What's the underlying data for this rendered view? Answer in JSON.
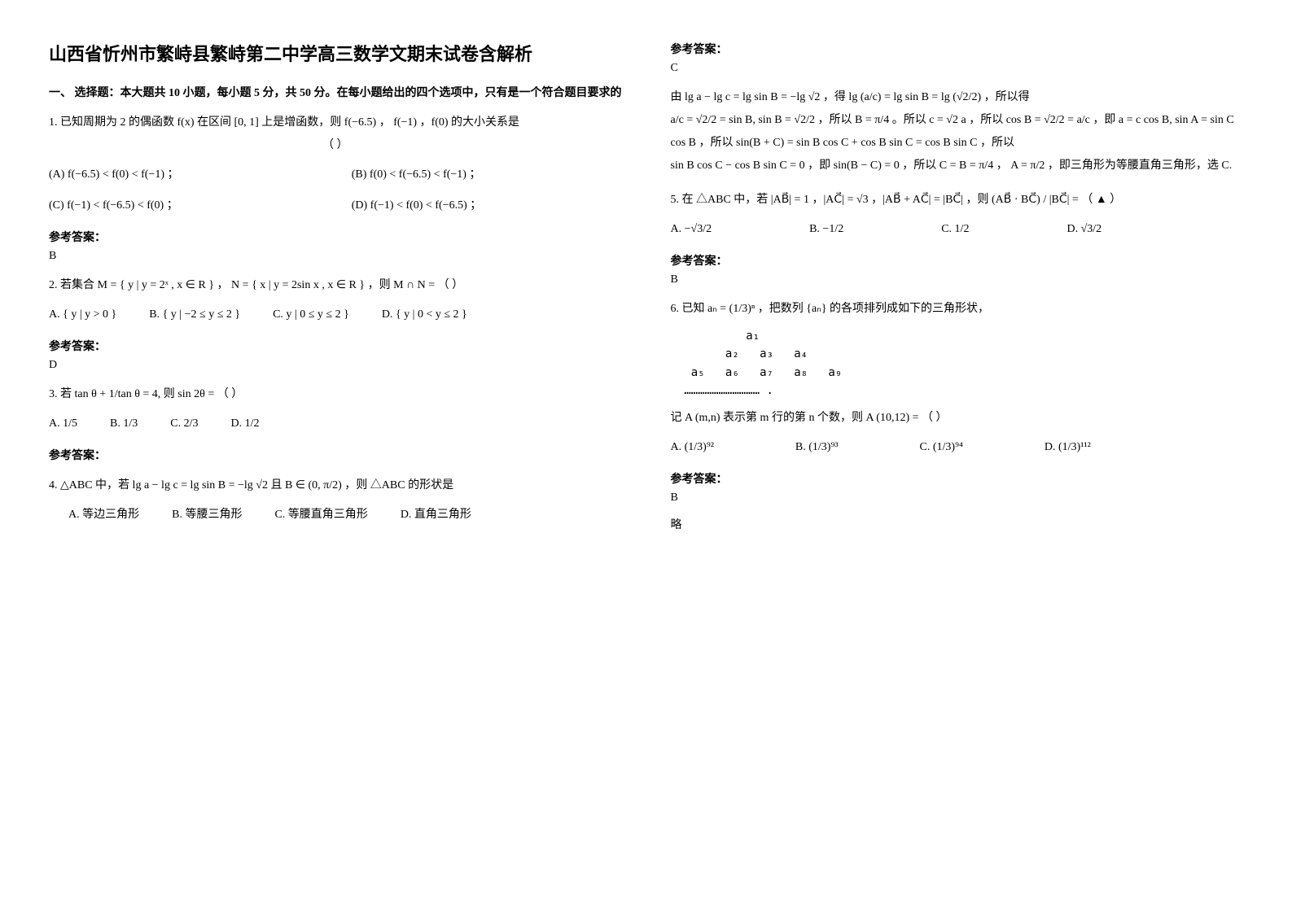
{
  "title": "山西省忻州市繁峙县繁峙第二中学高三数学文期末试卷含解析",
  "section1": "一、 选择题：本大题共 10 小题，每小题 5 分，共 50 分。在每小题给出的四个选项中，只有是一个符合题目要求的",
  "q1": {
    "stem": "1. 已知周期为 2 的偶函数 f(x) 在区间 [0, 1] 上是增函数，则 f(−6.5) ， f(−1) ，f(0) 的大小关系是",
    "paren": "（        ）",
    "optA": "(A) f(−6.5) < f(0) < f(−1) ；",
    "optB": "(B) f(0) < f(−6.5) < f(−1) ；",
    "optC": "(C)  f(−1) < f(−6.5) < f(0) ；",
    "optD": "(D) f(−1) < f(0) < f(−6.5) ；",
    "ansLabel": "参考答案：",
    "ans": "B"
  },
  "q2": {
    "stem": "2. 若集合 M = { y | y = 2ˣ , x ∈ R } ， N = { x | y = 2sin x , x ∈ R } ，则 M ∩ N =     （   ）",
    "optA": "A.  { y | y > 0 }",
    "optB": "B.  { y | −2 ≤ y ≤ 2 }",
    "optC": "C.  y | 0 ≤ y ≤ 2 }",
    "optD": "D. { y | 0 < y ≤ 2 }",
    "ansLabel": "参考答案：",
    "ans": "D"
  },
  "q3": {
    "stem": "3. 若 tan θ + 1/tan θ = 4, 则 sin 2θ = （            ）",
    "optA": "A.        1/5",
    "optB": "B.            1/3",
    "optC": "C.            2/3",
    "optD": "D.      1/2",
    "ansLabel": "参考答案："
  },
  "q4": {
    "stem": "4. △ABC 中，若 lg a − lg c = lg sin B = −lg √2 且 B ∈ (0, π/2) ，则 △ABC 的形状是",
    "optA": "A. 等边三角形",
    "optB": "B. 等腰三角形",
    "optC": "C. 等腰直角三角形",
    "optD": "D. 直角三角形",
    "ansLabel": "参考答案：",
    "ans": "C",
    "expl1": "由 lg a − lg c = lg sin B = −lg √2 ，得 lg (a/c) = lg sin B = lg (√2/2) ，所以得",
    "expl2": "a/c = √2/2 = sin B, sin B = √2/2 ，所以 B = π/4 。所以 c = √2 a ，所以 cos B = √2/2 = a/c ，即 a = c cos B, sin A = sin C cos B ，所以 sin(B + C) = sin B cos C + cos B sin C = cos B sin C ，所以",
    "expl3": "sin B cos C − cos B sin C = 0 ，即 sin(B − C) = 0 ，所以 C = B = π/4 ， A = π/2 ，即三角形为等腰直角三角形，选 C."
  },
  "q5": {
    "stem": "5. 在 △ABC 中，若 |AB⃗| = 1 ，|AC⃗| = √3 ，|AB⃗ + AC⃗| = |BC⃗| ，则 (AB⃗ · BC⃗) / |BC⃗| =   （ ▲ ）",
    "optA": "A.  −√3/2",
    "optB": "B.  −1/2",
    "optC": "C.  1/2",
    "optD": "D.  √3/2",
    "ansLabel": "参考答案：",
    "ans": "B"
  },
  "q6": {
    "stem": "6. 已知 aₙ = (1/3)ⁿ ，把数列 {aₙ} 的各项排列成如下的三角形状，",
    "tri": "           a₁\n        a₂   a₃   a₄\n   a₅   a₆   a₇   a₈   a₉\n  …………………………… .",
    "stem2": "记 A (m,n) 表示第 m 行的第 n 个数，则 A (10,12) =     （       ）",
    "optA": "A.  (1/3)⁹²",
    "optB": "B.  (1/3)⁹³",
    "optC": "C.  (1/3)⁹⁴",
    "optD": "D.  (1/3)¹¹²",
    "ansLabel": "参考答案：",
    "ans": "B",
    "extra": "略"
  }
}
